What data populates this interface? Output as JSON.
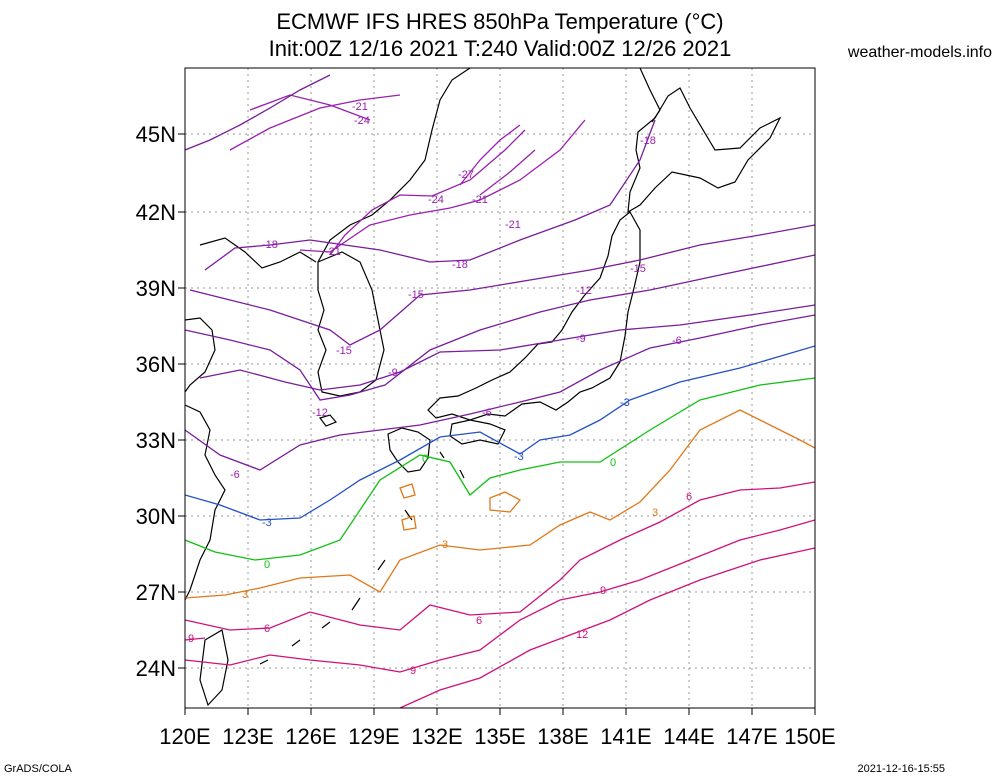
{
  "header": {
    "title_line1": "ECMWF IFS HRES 850hPa Temperature (°C)",
    "title_line2": "Init:00Z 12/16 2021 T:240 Valid:00Z 12/26 2021",
    "site": "weather-models.info"
  },
  "footer": {
    "software": "GrADS/COLA",
    "timestamp": "2021-12-16-15:55"
  },
  "map": {
    "region": "Japan / East Asia",
    "lon_range": [
      120,
      150
    ],
    "lat_range": [
      22.5,
      47.5
    ],
    "lat_labels": [
      "45N",
      "42N",
      "39N",
      "36N",
      "33N",
      "30N",
      "27N",
      "24N"
    ],
    "lon_labels": [
      "120E",
      "123E",
      "126E",
      "129E",
      "132E",
      "135E",
      "138E",
      "141E",
      "144E",
      "147E",
      "150E"
    ],
    "grid": true,
    "colors": {
      "very_cold": "#9a1fb0",
      "cold": "#7a1c9c",
      "minus3": "#2350c8",
      "zero": "#10c010",
      "plus3": "#e07818",
      "warm": "#d0107a",
      "coast": "#000000"
    },
    "contour_labels": [
      "-27",
      "-24",
      "-21",
      "-18",
      "-15",
      "-12",
      "-9",
      "-6",
      "-3",
      "0",
      "3",
      "6",
      "9",
      "12"
    ]
  }
}
